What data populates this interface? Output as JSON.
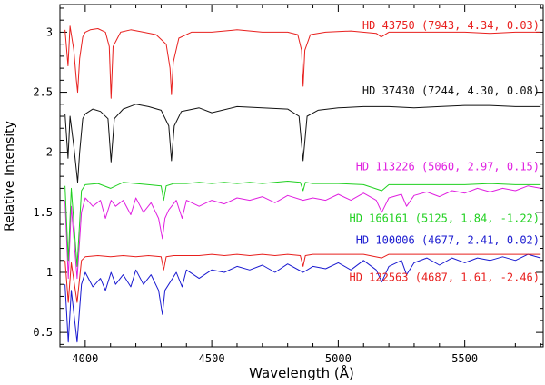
{
  "chart_data": {
    "type": "line",
    "title": "",
    "xlabel": "Wavelength (Å)",
    "ylabel": "Relative Intensity",
    "xlim": [
      3900,
      5810
    ],
    "ylim": [
      0.38,
      3.23
    ],
    "xticks": [
      {
        "value": 4000,
        "label": "4000"
      },
      {
        "value": 4500,
        "label": "4500"
      },
      {
        "value": 5000,
        "label": "5000"
      },
      {
        "value": 5500,
        "label": "5500"
      }
    ],
    "yticks": [
      {
        "value": 0.5,
        "label": "0.5"
      },
      {
        "value": 1,
        "label": "1"
      },
      {
        "value": 1.5,
        "label": "1.5"
      },
      {
        "value": 2,
        "label": "2"
      },
      {
        "value": 2.5,
        "label": "2.5"
      },
      {
        "value": 3,
        "label": "3"
      }
    ],
    "series": [
      {
        "name": "HD 43750",
        "label": "HD 43750 (7943, 4.34, 0.03)",
        "color": "#e8201e",
        "x": [
          3920,
          3932,
          3940,
          3955,
          3965,
          3970,
          3978,
          3990,
          4000,
          4020,
          4050,
          4080,
          4095,
          4102,
          4110,
          4140,
          4180,
          4230,
          4280,
          4320,
          4335,
          4341,
          4348,
          4370,
          4420,
          4500,
          4600,
          4700,
          4800,
          4840,
          4855,
          4861,
          4868,
          4890,
          4950,
          5050,
          5150,
          5170,
          5200,
          5300,
          5400,
          5500,
          5600,
          5700,
          5800
        ],
        "y": [
          3.02,
          2.72,
          3.05,
          2.85,
          2.6,
          2.5,
          2.78,
          2.96,
          3.0,
          3.02,
          3.03,
          3.0,
          2.88,
          2.45,
          2.88,
          3.0,
          3.02,
          3.0,
          2.98,
          2.9,
          2.7,
          2.48,
          2.75,
          2.95,
          3.0,
          3.0,
          3.02,
          3.0,
          3.0,
          2.98,
          2.85,
          2.55,
          2.85,
          2.98,
          3.0,
          3.01,
          2.99,
          2.96,
          3.0,
          3.0,
          3.0,
          3.0,
          2.99,
          3.0,
          3.0
        ]
      },
      {
        "name": "HD 37430",
        "label": "HD 37430 (7244, 4.30, 0.08)",
        "color": "#111111",
        "x": [
          3920,
          3932,
          3940,
          3955,
          3965,
          3970,
          3978,
          3990,
          4000,
          4030,
          4060,
          4090,
          4102,
          4115,
          4150,
          4200,
          4250,
          4300,
          4330,
          4341,
          4352,
          4380,
          4450,
          4500,
          4600,
          4700,
          4800,
          4845,
          4861,
          4877,
          4920,
          5000,
          5100,
          5200,
          5300,
          5400,
          5500,
          5600,
          5700,
          5800
        ],
        "y": [
          2.32,
          1.95,
          2.3,
          2.05,
          1.85,
          1.75,
          2.0,
          2.28,
          2.32,
          2.36,
          2.34,
          2.28,
          1.92,
          2.28,
          2.36,
          2.4,
          2.38,
          2.35,
          2.22,
          1.93,
          2.22,
          2.34,
          2.37,
          2.33,
          2.38,
          2.37,
          2.36,
          2.3,
          1.93,
          2.3,
          2.35,
          2.37,
          2.38,
          2.38,
          2.37,
          2.38,
          2.39,
          2.39,
          2.38,
          2.38
        ]
      },
      {
        "name": "HD 113226",
        "label": "HD 113226 (5060, 2.97, 0.15)",
        "color": "#e020e0",
        "x": [
          3920,
          3933,
          3945,
          3968,
          3985,
          4000,
          4030,
          4060,
          4080,
          4102,
          4120,
          4150,
          4180,
          4200,
          4230,
          4260,
          4290,
          4305,
          4315,
          4330,
          4360,
          4383,
          4400,
          4450,
          4500,
          4550,
          4600,
          4650,
          4700,
          4750,
          4800,
          4861,
          4900,
          4950,
          5000,
          5050,
          5100,
          5150,
          5172,
          5200,
          5250,
          5270,
          5300,
          5350,
          5400,
          5450,
          5500,
          5550,
          5600,
          5650,
          5700,
          5750,
          5800
        ],
        "y": [
          1.6,
          0.95,
          1.55,
          0.95,
          1.5,
          1.62,
          1.55,
          1.6,
          1.45,
          1.6,
          1.55,
          1.6,
          1.48,
          1.62,
          1.5,
          1.58,
          1.45,
          1.28,
          1.45,
          1.52,
          1.6,
          1.45,
          1.6,
          1.55,
          1.6,
          1.57,
          1.62,
          1.6,
          1.63,
          1.58,
          1.64,
          1.6,
          1.62,
          1.6,
          1.65,
          1.6,
          1.66,
          1.6,
          1.5,
          1.62,
          1.65,
          1.55,
          1.64,
          1.67,
          1.63,
          1.68,
          1.66,
          1.7,
          1.67,
          1.7,
          1.68,
          1.72,
          1.7
        ]
      },
      {
        "name": "HD 166161",
        "label": "HD 166161 (5125, 1.84, -1.22)",
        "color": "#20d020",
        "x": [
          3920,
          3933,
          3945,
          3968,
          3985,
          4000,
          4050,
          4100,
          4150,
          4200,
          4250,
          4300,
          4310,
          4320,
          4350,
          4400,
          4450,
          4500,
          4550,
          4600,
          4650,
          4700,
          4750,
          4800,
          4850,
          4861,
          4870,
          4900,
          5000,
          5100,
          5172,
          5200,
          5300,
          5400,
          5500,
          5600,
          5700,
          5800
        ],
        "y": [
          1.72,
          1.1,
          1.7,
          1.05,
          1.68,
          1.73,
          1.74,
          1.7,
          1.75,
          1.74,
          1.73,
          1.72,
          1.6,
          1.72,
          1.74,
          1.74,
          1.75,
          1.74,
          1.75,
          1.74,
          1.75,
          1.74,
          1.75,
          1.76,
          1.75,
          1.68,
          1.75,
          1.74,
          1.74,
          1.73,
          1.68,
          1.73,
          1.73,
          1.73,
          1.73,
          1.74,
          1.73,
          1.73
        ]
      },
      {
        "name": "HD 100006",
        "label": "HD 100006 (4677, 2.41, 0.02)",
        "color": "#1a1ad0",
        "x": [
          3920,
          3933,
          3945,
          3968,
          3985,
          4000,
          4030,
          4060,
          4080,
          4102,
          4120,
          4150,
          4180,
          4200,
          4230,
          4260,
          4290,
          4305,
          4315,
          4330,
          4360,
          4383,
          4400,
          4450,
          4500,
          4550,
          4600,
          4650,
          4700,
          4750,
          4800,
          4861,
          4900,
          4950,
          5000,
          5050,
          5100,
          5150,
          5172,
          5200,
          5250,
          5270,
          5300,
          5350,
          5400,
          5450,
          5500,
          5550,
          5600,
          5650,
          5700,
          5750,
          5800
        ],
        "y": [
          0.9,
          0.42,
          0.85,
          0.42,
          0.9,
          1.0,
          0.88,
          0.95,
          0.85,
          1.0,
          0.9,
          0.98,
          0.88,
          1.02,
          0.9,
          0.98,
          0.85,
          0.65,
          0.85,
          0.9,
          1.0,
          0.88,
          1.02,
          0.95,
          1.02,
          1.0,
          1.05,
          1.02,
          1.06,
          1.0,
          1.07,
          1.0,
          1.05,
          1.03,
          1.08,
          1.02,
          1.1,
          1.02,
          0.92,
          1.05,
          1.1,
          0.98,
          1.08,
          1.12,
          1.06,
          1.12,
          1.08,
          1.12,
          1.1,
          1.13,
          1.1,
          1.15,
          1.12
        ]
      },
      {
        "name": "HD 122563",
        "label": "HD 122563 (4687, 1.61, -2.46)",
        "color": "#e8201e",
        "x": [
          3920,
          3933,
          3945,
          3968,
          3985,
          4000,
          4050,
          4100,
          4150,
          4200,
          4250,
          4300,
          4310,
          4320,
          4350,
          4400,
          4450,
          4500,
          4550,
          4600,
          4650,
          4700,
          4750,
          4800,
          4850,
          4861,
          4870,
          4900,
          5000,
          5100,
          5172,
          5200,
          5300,
          5400,
          5500,
          5600,
          5700,
          5800
        ],
        "y": [
          1.1,
          0.75,
          1.08,
          0.75,
          1.1,
          1.13,
          1.14,
          1.13,
          1.14,
          1.13,
          1.14,
          1.13,
          1.02,
          1.13,
          1.14,
          1.14,
          1.14,
          1.15,
          1.14,
          1.15,
          1.14,
          1.15,
          1.14,
          1.15,
          1.14,
          1.05,
          1.14,
          1.15,
          1.15,
          1.15,
          1.12,
          1.15,
          1.15,
          1.15,
          1.15,
          1.15,
          1.15,
          1.15
        ]
      }
    ]
  }
}
